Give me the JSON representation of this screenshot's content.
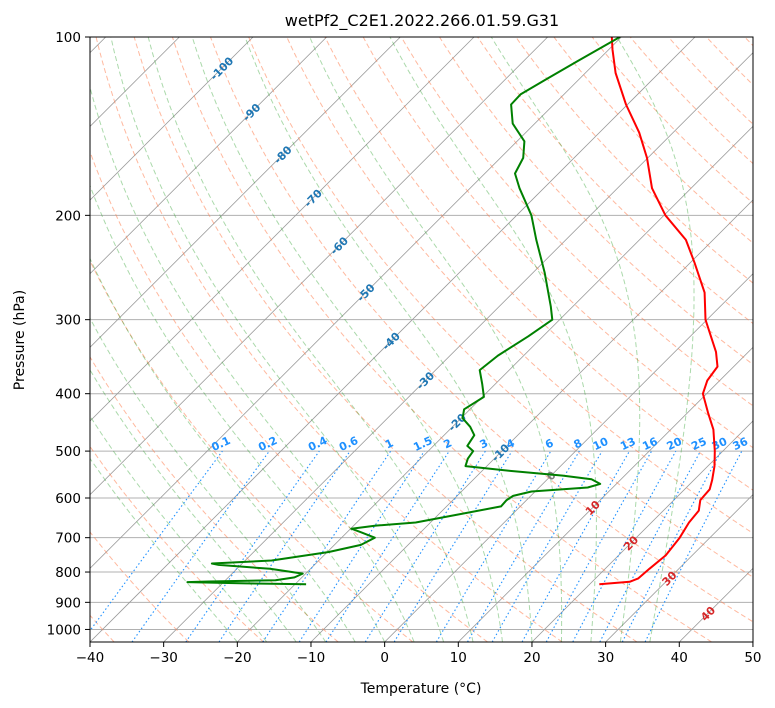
{
  "chart_data": {
    "type": "skew-t log-p diagram",
    "title": "wetPf2_C2E1.2022.266.01.59.G31",
    "xlabel": "Temperature (°C)",
    "ylabel": "Pressure (hPa)",
    "xlim": [
      -40,
      50
    ],
    "ylim_pressure": [
      1050,
      100
    ],
    "y_scale": "log",
    "grid": true,
    "x_ticks": [
      -40,
      -30,
      -20,
      -10,
      0,
      10,
      20,
      30,
      40,
      50
    ],
    "x_tick_labels": [
      "−40",
      "−30",
      "−20",
      "−10",
      "0",
      "10",
      "20",
      "30",
      "40",
      "50"
    ],
    "y_ticks": [
      100,
      200,
      300,
      400,
      500,
      600,
      700,
      800,
      900,
      1000
    ],
    "y_tick_labels": [
      "100",
      "200",
      "300",
      "400",
      "500",
      "600",
      "700",
      "800",
      "900",
      "1000"
    ],
    "colors": {
      "temperature": "#ff0000",
      "dewpoint": "#008000",
      "isotherm": "#999999",
      "dry_adiabat": "#ff7f50",
      "moist_adiabat": "#2ca02c",
      "mixing_ratio": "#1e90ff",
      "dry_adiabat_label": "#d62728",
      "moist_adiabat_label": "#1f77b4",
      "zero_label": "#7f7f7f"
    },
    "mixing_ratio_labels": [
      "0.1",
      "0.2",
      "0.4",
      "0.6",
      "1",
      "1.5",
      "2",
      "3",
      "4",
      "6",
      "8",
      "10",
      "13",
      "16",
      "20",
      "25",
      "30",
      "36"
    ],
    "adiabat_labels": [
      {
        "text": "-100",
        "temp": -100,
        "p": 113
      },
      {
        "text": "-90",
        "temp": -90,
        "p": 134
      },
      {
        "text": "-80",
        "temp": -80,
        "p": 158
      },
      {
        "text": "-70",
        "temp": -70,
        "p": 187
      },
      {
        "text": "-60",
        "temp": -60,
        "p": 225
      },
      {
        "text": "-50",
        "temp": -50,
        "p": 270
      },
      {
        "text": "-40",
        "temp": -40,
        "p": 326
      },
      {
        "text": "-30",
        "temp": -30,
        "p": 380
      },
      {
        "text": "-20",
        "temp": -20,
        "p": 447
      },
      {
        "text": "-10",
        "temp": -10,
        "p": 503
      },
      {
        "text": "0",
        "temp": 0,
        "p": 550
      },
      {
        "text": "10",
        "temp": 10,
        "p": 623
      },
      {
        "text": "20",
        "temp": 20,
        "p": 715
      },
      {
        "text": "30",
        "temp": 30,
        "p": 820
      },
      {
        "text": "40",
        "temp": 40,
        "p": 940
      }
    ],
    "series": [
      {
        "name": "Temperature",
        "points": [
          {
            "p": 839,
            "t": 21.3
          },
          {
            "p": 831,
            "t": 25.1
          },
          {
            "p": 820,
            "t": 25.8
          },
          {
            "p": 790,
            "t": 26.0
          },
          {
            "p": 750,
            "t": 26.4
          },
          {
            "p": 700,
            "t": 25.9
          },
          {
            "p": 660,
            "t": 25.1
          },
          {
            "p": 630,
            "t": 24.8
          },
          {
            "p": 605,
            "t": 23.6
          },
          {
            "p": 580,
            "t": 23.4
          },
          {
            "p": 560,
            "t": 22.5
          },
          {
            "p": 530,
            "t": 20.9
          },
          {
            "p": 500,
            "t": 18.9
          },
          {
            "p": 460,
            "t": 15.8
          },
          {
            "p": 430,
            "t": 12.7
          },
          {
            "p": 400,
            "t": 9.5
          },
          {
            "p": 380,
            "t": 8.3
          },
          {
            "p": 360,
            "t": 7.8
          },
          {
            "p": 340,
            "t": 5.6
          },
          {
            "p": 300,
            "t": -0.2
          },
          {
            "p": 270,
            "t": -4.0
          },
          {
            "p": 240,
            "t": -9.5
          },
          {
            "p": 220,
            "t": -13.7
          },
          {
            "p": 200,
            "t": -19.8
          },
          {
            "p": 180,
            "t": -25.3
          },
          {
            "p": 160,
            "t": -30.1
          },
          {
            "p": 145,
            "t": -34.6
          },
          {
            "p": 130,
            "t": -40.2
          },
          {
            "p": 115,
            "t": -45.9
          },
          {
            "p": 105,
            "t": -49.5
          },
          {
            "p": 100,
            "t": -51.3
          }
        ]
      },
      {
        "name": "Dewpoint",
        "points": [
          {
            "p": 839,
            "t": -18.5
          },
          {
            "p": 836,
            "t": -26.8
          },
          {
            "p": 832,
            "t": -34.9
          },
          {
            "p": 830,
            "t": -32.1
          },
          {
            "p": 826,
            "t": -23.2
          },
          {
            "p": 817,
            "t": -21.0
          },
          {
            "p": 805,
            "t": -20.4
          },
          {
            "p": 790,
            "t": -25.5
          },
          {
            "p": 778,
            "t": -33.0
          },
          {
            "p": 774,
            "t": -34.1
          },
          {
            "p": 765,
            "t": -26.4
          },
          {
            "p": 740,
            "t": -19.8
          },
          {
            "p": 720,
            "t": -16.4
          },
          {
            "p": 700,
            "t": -15.5
          },
          {
            "p": 685,
            "t": -18.2
          },
          {
            "p": 676,
            "t": -19.9
          },
          {
            "p": 668,
            "t": -17.0
          },
          {
            "p": 660,
            "t": -12.0
          },
          {
            "p": 640,
            "t": -7.4
          },
          {
            "p": 620,
            "t": -2.6
          },
          {
            "p": 605,
            "t": -2.7
          },
          {
            "p": 595,
            "t": -2.4
          },
          {
            "p": 585,
            "t": -0.5
          },
          {
            "p": 576,
            "t": 6.6
          },
          {
            "p": 568,
            "t": 7.8
          },
          {
            "p": 558,
            "t": 6.0
          },
          {
            "p": 550,
            "t": 1.6
          },
          {
            "p": 540,
            "t": -6.2
          },
          {
            "p": 530,
            "t": -12.9
          },
          {
            "p": 515,
            "t": -13.6
          },
          {
            "p": 500,
            "t": -13.9
          },
          {
            "p": 490,
            "t": -15.4
          },
          {
            "p": 470,
            "t": -15.9
          },
          {
            "p": 455,
            "t": -17.6
          },
          {
            "p": 440,
            "t": -19.8
          },
          {
            "p": 425,
            "t": -20.8
          },
          {
            "p": 405,
            "t": -19.8
          },
          {
            "p": 385,
            "t": -21.8
          },
          {
            "p": 365,
            "t": -24.0
          },
          {
            "p": 345,
            "t": -23.5
          },
          {
            "p": 320,
            "t": -22.0
          },
          {
            "p": 300,
            "t": -21.0
          },
          {
            "p": 285,
            "t": -23.0
          },
          {
            "p": 250,
            "t": -28.4
          },
          {
            "p": 220,
            "t": -34.0
          },
          {
            "p": 200,
            "t": -38.0
          },
          {
            "p": 180,
            "t": -43.3
          },
          {
            "p": 170,
            "t": -45.9
          },
          {
            "p": 160,
            "t": -46.9
          },
          {
            "p": 150,
            "t": -49.0
          },
          {
            "p": 140,
            "t": -53.0
          },
          {
            "p": 130,
            "t": -55.8
          },
          {
            "p": 125,
            "t": -55.9
          },
          {
            "p": 118,
            "t": -54.5
          },
          {
            "p": 110,
            "t": -52.7
          },
          {
            "p": 100,
            "t": -50.2
          }
        ]
      }
    ]
  }
}
